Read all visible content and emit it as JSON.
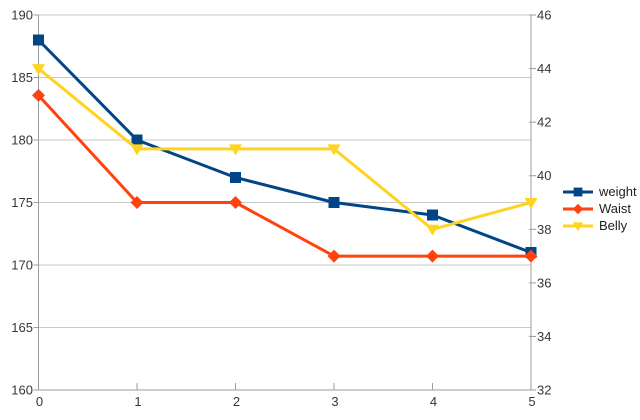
{
  "chart_data": {
    "type": "line",
    "title": "",
    "xlabel": "",
    "ylabel_left": "",
    "ylabel_right": "",
    "x": [
      0,
      1,
      2,
      3,
      4,
      5
    ],
    "x_axis": {
      "ticks": [
        "0",
        "1",
        "2",
        "3",
        "4",
        "5"
      ]
    },
    "left_axis": {
      "min": 160,
      "max": 190,
      "step": 5,
      "ticks": [
        160,
        165,
        170,
        175,
        180,
        185,
        190
      ]
    },
    "right_axis": {
      "min": 32,
      "max": 46,
      "step": 2,
      "ticks": [
        32,
        34,
        36,
        38,
        40,
        42,
        44,
        46
      ]
    },
    "grid": "horizontal-left-axis-only",
    "legend_position": "right",
    "series": [
      {
        "name": "weight",
        "axis": "left",
        "marker": "square",
        "color": "#004586",
        "values": [
          188,
          180,
          177,
          175,
          174,
          171
        ]
      },
      {
        "name": "Waist",
        "axis": "right",
        "marker": "diamond",
        "color": "#ff420e",
        "values": [
          43,
          39,
          39,
          37,
          37,
          37
        ]
      },
      {
        "name": "Belly",
        "axis": "right",
        "marker": "triangle-down",
        "color": "#ffd320",
        "values": [
          44,
          41,
          41,
          41,
          38,
          39
        ]
      }
    ],
    "colors": {
      "background": "#ffffff",
      "grid": "#c9c9c9",
      "axis": "#9c9c9c",
      "tick_label": "#373737",
      "legend_label": "#1f1f1f"
    }
  }
}
